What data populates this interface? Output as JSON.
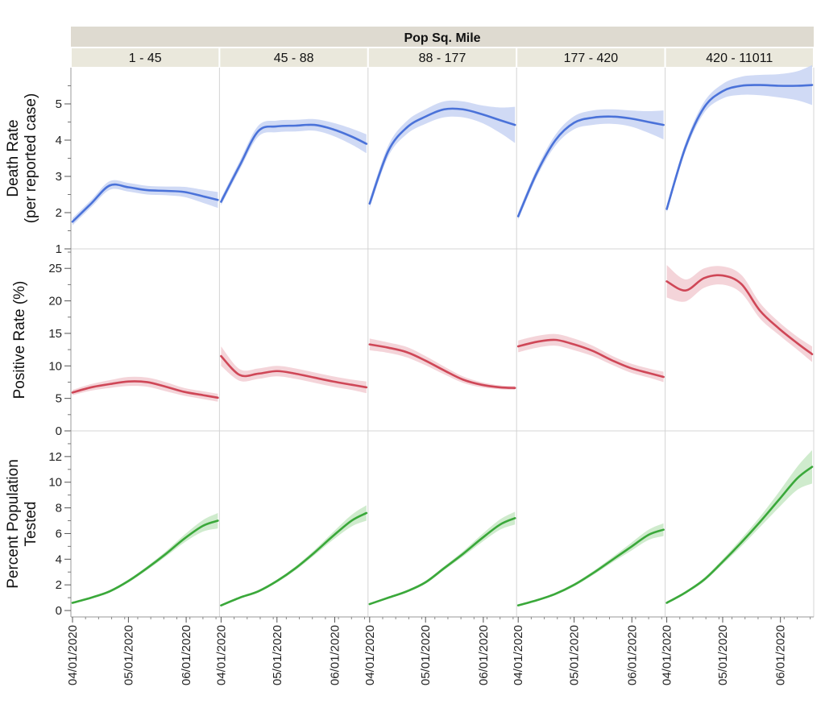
{
  "chart_data": {
    "type": "line",
    "title": "Pop Sq. Mile",
    "panels": [
      "1 - 45",
      "45 - 88",
      "88 - 177",
      "177 - 420",
      "420 - 11011"
    ],
    "x_tick_labels": [
      "04/01/2020",
      "05/01/2020",
      "06/01/2020"
    ],
    "x_days": [
      0,
      10,
      20,
      30,
      40,
      50,
      60,
      70,
      78
    ],
    "rows": [
      {
        "ylabel": [
          "Death Rate",
          "(per reported case)"
        ],
        "color": "#4a72d9",
        "band_color": "#c8d3f3",
        "ylim": [
          1,
          6
        ],
        "yticks": [
          1,
          2,
          3,
          4,
          5
        ],
        "series": [
          {
            "values": [
              1.75,
              2.25,
              2.75,
              2.7,
              2.62,
              2.6,
              2.57,
              2.45,
              2.35
            ],
            "err": [
              0.1,
              0.1,
              0.12,
              0.12,
              0.12,
              0.12,
              0.14,
              0.18,
              0.22
            ]
          },
          {
            "values": [
              2.3,
              3.3,
              4.25,
              4.38,
              4.4,
              4.42,
              4.3,
              4.1,
              3.9
            ],
            "err": [
              0.1,
              0.12,
              0.15,
              0.16,
              0.16,
              0.16,
              0.18,
              0.22,
              0.26
            ]
          },
          {
            "values": [
              2.25,
              3.7,
              4.35,
              4.65,
              4.85,
              4.85,
              4.72,
              4.55,
              4.42
            ],
            "err": [
              0.12,
              0.15,
              0.18,
              0.2,
              0.22,
              0.22,
              0.24,
              0.35,
              0.5
            ]
          },
          {
            "values": [
              1.9,
              3.1,
              4.0,
              4.48,
              4.62,
              4.65,
              4.6,
              4.5,
              4.42
            ],
            "err": [
              0.1,
              0.12,
              0.15,
              0.18,
              0.2,
              0.2,
              0.22,
              0.3,
              0.4
            ]
          },
          {
            "values": [
              2.1,
              3.8,
              4.9,
              5.35,
              5.5,
              5.52,
              5.5,
              5.5,
              5.52
            ],
            "err": [
              0.1,
              0.12,
              0.15,
              0.2,
              0.25,
              0.28,
              0.32,
              0.4,
              0.55
            ]
          }
        ]
      },
      {
        "ylabel": [
          "Positive Rate (%)"
        ],
        "color": "#cf4757",
        "band_color": "#f2cdd2",
        "ylim": [
          0,
          28
        ],
        "yticks": [
          0,
          5,
          10,
          15,
          20,
          25
        ],
        "series": [
          {
            "values": [
              5.9,
              6.7,
              7.2,
              7.6,
              7.5,
              6.8,
              6.0,
              5.5,
              5.1
            ],
            "err": [
              0.4,
              0.5,
              0.6,
              0.7,
              0.7,
              0.7,
              0.6,
              0.6,
              0.6
            ]
          },
          {
            "values": [
              11.5,
              8.6,
              8.8,
              9.2,
              8.8,
              8.2,
              7.6,
              7.1,
              6.7
            ],
            "err": [
              1.5,
              0.9,
              0.8,
              0.8,
              0.8,
              0.8,
              0.8,
              0.8,
              0.9
            ]
          },
          {
            "values": [
              13.3,
              12.8,
              12.1,
              10.8,
              9.3,
              7.9,
              7.1,
              6.7,
              6.6
            ],
            "err": [
              0.9,
              0.8,
              0.8,
              0.7,
              0.6,
              0.5,
              0.4,
              0.3,
              0.3
            ]
          },
          {
            "values": [
              13.0,
              13.7,
              14.0,
              13.3,
              12.3,
              10.9,
              9.7,
              8.9,
              8.3
            ],
            "err": [
              0.9,
              0.9,
              0.9,
              0.9,
              0.8,
              0.7,
              0.7,
              0.7,
              0.8
            ]
          },
          {
            "values": [
              23.0,
              21.6,
              23.5,
              23.9,
              22.6,
              18.5,
              15.8,
              13.5,
              11.8
            ],
            "err": [
              2.5,
              1.7,
              1.5,
              1.4,
              1.4,
              1.2,
              1.0,
              1.0,
              1.2
            ]
          }
        ]
      },
      {
        "ylabel": [
          "Percent Population",
          "Tested"
        ],
        "color": "#3aa83a",
        "band_color": "#c7e8c4",
        "ylim": [
          -0.5,
          14
        ],
        "yticks": [
          0,
          2,
          4,
          6,
          8,
          10,
          12
        ],
        "series": [
          {
            "values": [
              0.6,
              1.0,
              1.5,
              2.3,
              3.3,
              4.4,
              5.6,
              6.6,
              7.0
            ],
            "err": [
              0.08,
              0.08,
              0.1,
              0.12,
              0.15,
              0.2,
              0.3,
              0.45,
              0.6
            ]
          },
          {
            "values": [
              0.4,
              1.0,
              1.5,
              2.3,
              3.3,
              4.5,
              5.8,
              7.0,
              7.6
            ],
            "err": [
              0.08,
              0.08,
              0.1,
              0.12,
              0.15,
              0.2,
              0.3,
              0.45,
              0.6
            ]
          },
          {
            "values": [
              0.5,
              1.0,
              1.5,
              2.2,
              3.3,
              4.4,
              5.6,
              6.7,
              7.2
            ],
            "err": [
              0.08,
              0.08,
              0.1,
              0.12,
              0.15,
              0.2,
              0.3,
              0.4,
              0.5
            ]
          },
          {
            "values": [
              0.4,
              0.8,
              1.3,
              2.0,
              2.9,
              3.9,
              4.9,
              5.9,
              6.3
            ],
            "err": [
              0.08,
              0.08,
              0.1,
              0.12,
              0.15,
              0.2,
              0.3,
              0.4,
              0.5
            ]
          },
          {
            "values": [
              0.6,
              1.4,
              2.4,
              3.8,
              5.3,
              6.9,
              8.6,
              10.3,
              11.2
            ],
            "err": [
              0.1,
              0.1,
              0.15,
              0.2,
              0.3,
              0.4,
              0.6,
              0.9,
              1.3
            ]
          }
        ]
      }
    ]
  }
}
